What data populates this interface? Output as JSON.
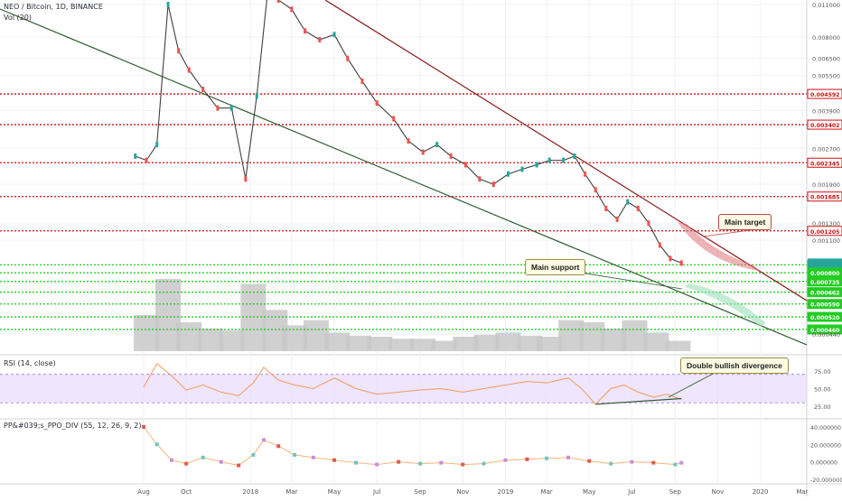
{
  "main_legend": {
    "symbol_line": "NEO / Bitcoin, 1D, BINANCE",
    "volume_line": "Vol (20)"
  },
  "rsi_legend": "RSI (14, close)",
  "ppo_legend": "PP&#039;s_PPO_DIV (55, 12, 26, 9, 2)",
  "annotations": {
    "main_target": "Main target",
    "main_support": "Main support",
    "double_bullish_divergence": "Double bullish divergence"
  },
  "colors": {
    "up_candle": "#26a69a",
    "down_candle": "#ef5350",
    "resistance_line": "#cc1111",
    "support_line": "#22cc22",
    "trend_resistance": "#8b1a1a",
    "trend_support": "#2f5a2f",
    "volume": "#c8c8c8",
    "rsi_line": "#f29a5a",
    "rsi_band": "#e8dafc",
    "ppo_line": "#f7b47a"
  },
  "chart_data": [
    {
      "panel": "price",
      "type": "line",
      "scale": "log",
      "title": "NEO / Bitcoin, 1D, BINANCE",
      "x_tick_labels": [
        "Aug",
        "Oct",
        "2018",
        "Mar",
        "May",
        "Jul",
        "Sep",
        "Nov",
        "2019",
        "Mar",
        "May",
        "Jul",
        "Sep",
        "Nov",
        "2020",
        "Mar"
      ],
      "y_tick_labels": [
        "0.011000",
        "0.008000",
        "0.006500",
        "0.005500",
        "0.003900",
        "0.002700",
        "0.001900",
        "0.001300",
        "0.001100",
        "0.000440"
      ],
      "series": [
        {
          "x": [
            "2017-07-20",
            "2017-08-05",
            "2017-08-20",
            "2017-09-05",
            "2017-09-20",
            "2017-10-05",
            "2017-10-25",
            "2017-11-15",
            "2017-12-05",
            "2017-12-25",
            "2018-01-10",
            "2018-01-25",
            "2018-02-10",
            "2018-03-01",
            "2018-03-20",
            "2018-04-10",
            "2018-05-01",
            "2018-05-20",
            "2018-06-10",
            "2018-07-01",
            "2018-07-25",
            "2018-08-15",
            "2018-09-05",
            "2018-09-25",
            "2018-10-15",
            "2018-11-05",
            "2018-11-25",
            "2018-12-15",
            "2019-01-05",
            "2019-01-25",
            "2019-02-15",
            "2019-03-05",
            "2019-03-25",
            "2019-04-10",
            "2019-04-25",
            "2019-05-10",
            "2019-05-25",
            "2019-06-10",
            "2019-06-25",
            "2019-07-10",
            "2019-07-25",
            "2019-08-10",
            "2019-08-25",
            "2019-09-10"
          ],
          "values": [
            0.0025,
            0.0024,
            0.0028,
            0.011,
            0.007,
            0.0058,
            0.0048,
            0.004,
            0.004,
            0.002,
            0.0045,
            0.012,
            0.0115,
            0.0105,
            0.0085,
            0.0078,
            0.0082,
            0.0065,
            0.0052,
            0.0042,
            0.0036,
            0.0029,
            0.0026,
            0.0028,
            0.0025,
            0.0023,
            0.002,
            0.0019,
            0.0021,
            0.0022,
            0.0023,
            0.0024,
            0.0024,
            0.0025,
            0.0021,
            0.0018,
            0.0015,
            0.00135,
            0.0016,
            0.0015,
            0.0013,
            0.00105,
            0.00092,
            0.00088
          ]
        }
      ],
      "horizontal_levels": [
        {
          "value": 0.004592,
          "label": "0.004592",
          "kind": "resistance"
        },
        {
          "value": 0.003402,
          "label": "0.003402",
          "kind": "resistance"
        },
        {
          "value": 0.002345,
          "label": "0.002345",
          "kind": "resistance"
        },
        {
          "value": 0.001685,
          "label": "0.001685",
          "kind": "resistance"
        },
        {
          "value": 0.001205,
          "label": "0.001205",
          "kind": "resistance"
        },
        {
          "value": 0.000865,
          "label": "0.000865",
          "kind": "support"
        },
        {
          "value": 0.0008,
          "label": "0.000800",
          "kind": "support"
        },
        {
          "value": 0.000735,
          "label": "0.000735",
          "kind": "support"
        },
        {
          "value": 0.000662,
          "label": "0.000662",
          "kind": "support"
        },
        {
          "value": 0.00059,
          "label": "0.000590",
          "kind": "support"
        },
        {
          "value": 0.00052,
          "label": "0.000520",
          "kind": "support"
        },
        {
          "value": 0.00046,
          "label": "0.000460",
          "kind": "support"
        }
      ]
    },
    {
      "panel": "volume",
      "type": "bar",
      "title": "Vol (20)",
      "x": [
        "2017-08-05",
        "2017-09-05",
        "2017-10-05",
        "2017-11-05",
        "2017-12-05",
        "2018-01-05",
        "2018-02-05",
        "2018-03-05",
        "2018-04-05",
        "2018-05-05",
        "2018-06-05",
        "2018-07-05",
        "2018-08-05",
        "2018-09-05",
        "2018-10-05",
        "2018-11-05",
        "2018-12-05",
        "2019-01-05",
        "2019-02-05",
        "2019-03-05",
        "2019-04-05",
        "2019-05-05",
        "2019-06-05",
        "2019-07-05",
        "2019-08-05",
        "2019-09-05"
      ],
      "values": [
        35,
        70,
        28,
        22,
        20,
        65,
        40,
        25,
        30,
        18,
        15,
        14,
        12,
        12,
        10,
        14,
        16,
        18,
        15,
        14,
        30,
        28,
        22,
        30,
        18,
        10
      ]
    },
    {
      "panel": "rsi",
      "type": "line",
      "title": "RSI (14, close)",
      "y_tick_labels": [
        "75.00",
        "50.00",
        "25.00"
      ],
      "band": [
        30,
        70
      ],
      "x": [
        "2017-08-01",
        "2017-08-20",
        "2017-09-10",
        "2017-10-01",
        "2017-10-25",
        "2017-11-20",
        "2017-12-15",
        "2018-01-05",
        "2018-01-20",
        "2018-02-10",
        "2018-03-05",
        "2018-04-01",
        "2018-05-01",
        "2018-06-01",
        "2018-07-01",
        "2018-08-01",
        "2018-09-01",
        "2018-10-01",
        "2018-11-01",
        "2018-12-01",
        "2019-01-01",
        "2019-02-01",
        "2019-03-01",
        "2019-04-01",
        "2019-04-20",
        "2019-05-10",
        "2019-06-01",
        "2019-06-20",
        "2019-07-10",
        "2019-08-01",
        "2019-08-20",
        "2019-09-10"
      ],
      "values": [
        52,
        85,
        68,
        48,
        55,
        45,
        40,
        58,
        80,
        62,
        55,
        50,
        65,
        50,
        42,
        45,
        48,
        50,
        45,
        50,
        55,
        60,
        58,
        65,
        50,
        28,
        50,
        55,
        45,
        38,
        42,
        35
      ]
    },
    {
      "panel": "ppo",
      "type": "line",
      "title": "PP&#039;s_PPO_DIV (55, 12, 26, 9, 2)",
      "y_tick_labels": [
        "40.000000",
        "20.000000",
        "0.000000",
        "-20.000000"
      ],
      "x": [
        "2017-08-01",
        "2017-08-20",
        "2017-09-10",
        "2017-10-01",
        "2017-10-25",
        "2017-11-20",
        "2017-12-15",
        "2018-01-05",
        "2018-01-20",
        "2018-02-10",
        "2018-03-05",
        "2018-04-01",
        "2018-05-01",
        "2018-06-01",
        "2018-07-01",
        "2018-08-01",
        "2018-09-01",
        "2018-10-01",
        "2018-11-01",
        "2018-12-01",
        "2019-01-01",
        "2019-02-01",
        "2019-03-01",
        "2019-04-01",
        "2019-05-01",
        "2019-06-01",
        "2019-07-01",
        "2019-08-01",
        "2019-09-01",
        "2019-09-10"
      ],
      "values": [
        40,
        20,
        2,
        -2,
        5,
        0,
        -4,
        8,
        25,
        18,
        8,
        5,
        2,
        -1,
        -3,
        0,
        -2,
        -1,
        -3,
        -2,
        2,
        3,
        4,
        5,
        1,
        -2,
        0,
        -1,
        -3,
        -1
      ]
    }
  ]
}
